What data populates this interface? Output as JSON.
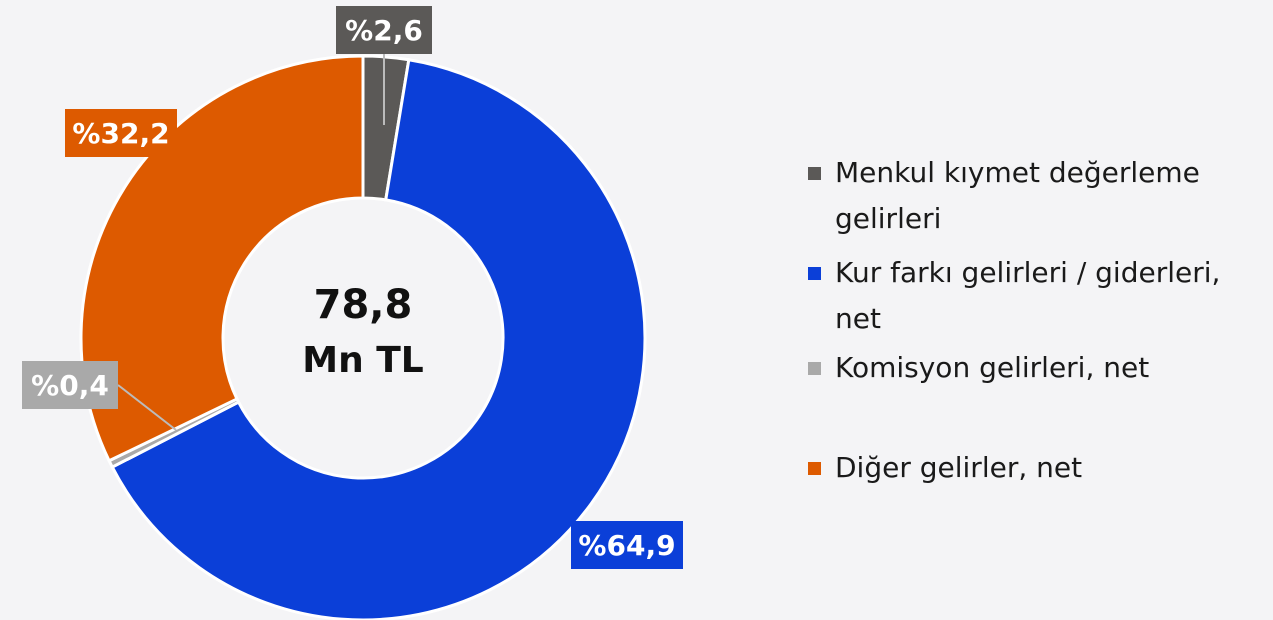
{
  "chart_data": {
    "type": "donut",
    "categories": [
      "Menkul kıymet değerleme gelirleri",
      "Kur farkı gelirleri / giderleri, net",
      "Komisyon gelirleri, net",
      "Diğer gelirler, net"
    ],
    "values": [
      2.6,
      64.9,
      0.4,
      32.2
    ],
    "value_labels": [
      "%2,6",
      "%64,9",
      "%0,4",
      "%32,2"
    ],
    "colors": [
      "#5b5957",
      "#0b3fd8",
      "#a9a9a9",
      "#dd5a00"
    ],
    "center_text": [
      "78,8",
      "Mn TL"
    ]
  }
}
